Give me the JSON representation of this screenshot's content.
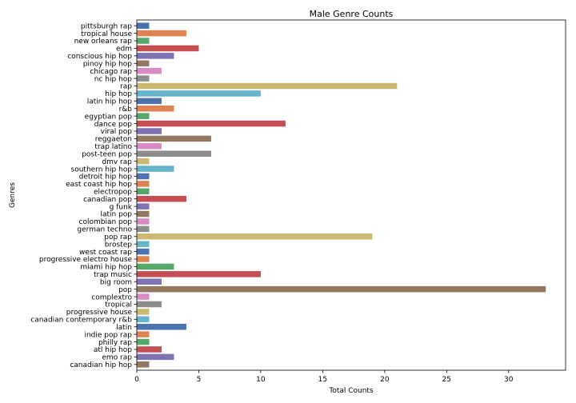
{
  "chart_data": {
    "type": "bar",
    "orientation": "horizontal",
    "title": "Male Genre Counts",
    "xlabel": "Total Counts",
    "ylabel": "Genres",
    "xlim": [
      0,
      34.6
    ],
    "xticks": [
      0,
      5,
      10,
      15,
      20,
      25,
      30
    ],
    "grid": false,
    "categories": [
      "pittsburgh rap",
      "tropical house",
      "new orleans rap",
      "edm",
      "conscious hip hop",
      "pinoy hip hop",
      "chicago rap",
      "nc hip hop",
      "rap",
      "hip hop",
      "latin hip hop",
      "r&b",
      "egyptian pop",
      "dance pop",
      "viral pop",
      "reggaeton",
      "trap latino",
      "post-teen pop",
      "dmv rap",
      "southern hip hop",
      "detroit hip hop",
      "east coast hip hop",
      "electropop",
      "canadian pop",
      "g funk",
      "latin pop",
      "colombian pop",
      "german techno",
      "pop rap",
      "brostep",
      "west coast rap",
      "progressive electro house",
      "miami hip hop",
      "trap music",
      "big room",
      "pop",
      "complextro",
      "tropical",
      "progressive house",
      "canadian contemporary r&b",
      "latin",
      "indie pop rap",
      "philly rap",
      "atl hip hop",
      "emo rap",
      "canadian hip hop"
    ],
    "values": [
      1,
      4,
      1,
      5,
      3,
      1,
      2,
      1,
      21,
      10,
      2,
      3,
      1,
      12,
      2,
      6,
      2,
      6,
      1,
      3,
      1,
      1,
      1,
      4,
      1,
      1,
      1,
      1,
      19,
      1,
      1,
      1,
      3,
      10,
      2,
      33,
      1,
      2,
      1,
      1,
      4,
      1,
      1,
      2,
      3,
      1
    ],
    "palette": [
      "#4c72b0",
      "#dd8452",
      "#55a868",
      "#c44e52",
      "#8172b3",
      "#937860",
      "#da8bc3",
      "#8c8c8c",
      "#ccb974",
      "#64b5cd"
    ]
  }
}
